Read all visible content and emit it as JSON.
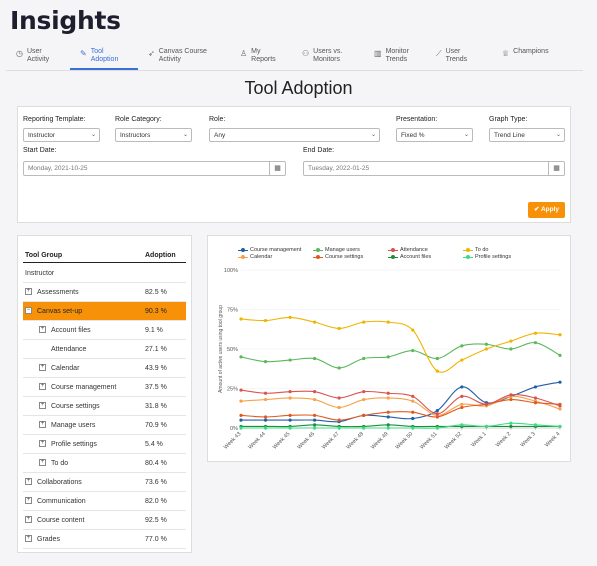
{
  "app": {
    "title": "Insights"
  },
  "tabs": [
    {
      "label": "User\nActivity",
      "icon": "clock-icon",
      "active": false
    },
    {
      "label": "Tool\nAdoption",
      "icon": "wrench-icon",
      "active": true
    },
    {
      "label": "Canvas Course\nActivity",
      "icon": "cursor-icon",
      "active": false
    },
    {
      "label": "My\nReports",
      "icon": "person-icon",
      "active": false
    },
    {
      "label": "Users vs.\nMonitors",
      "icon": "users-icon",
      "active": false
    },
    {
      "label": "Monitor\nTrends",
      "icon": "bar-chart-icon",
      "active": false
    },
    {
      "label": "User\nTrends",
      "icon": "line-chart-icon",
      "active": false
    },
    {
      "label": "Champions",
      "icon": "trophy-icon",
      "active": false
    }
  ],
  "page": {
    "title": "Tool Adoption"
  },
  "filters": {
    "reporting_template": {
      "label": "Reporting Template:",
      "value": "Instructor"
    },
    "role_category": {
      "label": "Role Category:",
      "value": "Instructors"
    },
    "role": {
      "label": "Role:",
      "value": "Any"
    },
    "presentation": {
      "label": "Presentation:",
      "value": "Fixed %"
    },
    "graph_type": {
      "label": "Graph Type:",
      "value": "Trend Line"
    },
    "start_date": {
      "label": "Start Date:",
      "value": "Monday, 2021-10-25"
    },
    "end_date": {
      "label": "End Date:",
      "value": "Tuesday, 2022-01-25"
    },
    "apply_label": "✔ Apply",
    "accent": "#f79208"
  },
  "table": {
    "headers": [
      "Tool Group",
      "Adoption"
    ],
    "rows": [
      {
        "name": "Instructor",
        "value": "",
        "level": 0,
        "expander": ""
      },
      {
        "name": "Assessments",
        "value": "82.5 %",
        "level": 0,
        "expander": "+"
      },
      {
        "name": "Canvas set-up",
        "value": "90.3 %",
        "level": 0,
        "expander": "-",
        "selected": true
      },
      {
        "name": "Account files",
        "value": "9.1 %",
        "level": 1,
        "expander": "+"
      },
      {
        "name": "Attendance",
        "value": "27.1 %",
        "level": 1,
        "expander": ""
      },
      {
        "name": "Calendar",
        "value": "43.9 %",
        "level": 1,
        "expander": "+"
      },
      {
        "name": "Course management",
        "value": "37.5 %",
        "level": 1,
        "expander": "+"
      },
      {
        "name": "Course settings",
        "value": "31.8 %",
        "level": 1,
        "expander": "+"
      },
      {
        "name": "Manage users",
        "value": "70.9 %",
        "level": 1,
        "expander": "+"
      },
      {
        "name": "Profile settings",
        "value": "5.4 %",
        "level": 1,
        "expander": "+"
      },
      {
        "name": "To do",
        "value": "80.4 %",
        "level": 1,
        "expander": "+"
      },
      {
        "name": "Collaborations",
        "value": "73.6 %",
        "level": 0,
        "expander": "+"
      },
      {
        "name": "Communication",
        "value": "82.0 %",
        "level": 0,
        "expander": "+"
      },
      {
        "name": "Course content",
        "value": "92.5 %",
        "level": 0,
        "expander": "+"
      },
      {
        "name": "Grades",
        "value": "77.0 %",
        "level": 0,
        "expander": "+"
      }
    ]
  },
  "chart_data": {
    "type": "line",
    "ylabel": "Amount of active users using tool group",
    "ylim": [
      0,
      100
    ],
    "yticks": [
      "0%",
      "25%",
      "50%",
      "75%",
      "100%"
    ],
    "categories": [
      "Week 43",
      "Week 44",
      "Week 45",
      "Week 46",
      "Week 47",
      "Week 48",
      "Week 49",
      "Week 50",
      "Week 51",
      "Week 52",
      "Week 1",
      "Week 2",
      "Week 3",
      "Week 4"
    ],
    "legend_position": "top",
    "series": [
      {
        "name": "Course management",
        "color": "#1f5fa8",
        "values": [
          5,
          5,
          5,
          5,
          4,
          8,
          7,
          6,
          11,
          26,
          16,
          20,
          26,
          29
        ]
      },
      {
        "name": "Calendar",
        "color": "#f5a24a",
        "values": [
          17,
          18,
          19,
          18,
          13,
          18,
          19,
          17,
          8,
          15,
          14,
          20,
          17,
          12
        ]
      },
      {
        "name": "Manage users",
        "color": "#5cb85c",
        "values": [
          45,
          42,
          43,
          44,
          38,
          44,
          45,
          49,
          44,
          52,
          53,
          50,
          54,
          46
        ]
      },
      {
        "name": "Course settings",
        "color": "#e05a1e",
        "values": [
          8,
          7,
          8,
          8,
          5,
          8,
          10,
          10,
          7,
          13,
          15,
          18,
          16,
          15
        ]
      },
      {
        "name": "Attendance",
        "color": "#d9534f",
        "values": [
          24,
          22,
          23,
          23,
          19,
          23,
          22,
          20,
          9,
          20,
          15,
          21,
          19,
          14
        ]
      },
      {
        "name": "Account files",
        "color": "#1a8f3c",
        "values": [
          1,
          1,
          1,
          2,
          1,
          1,
          2,
          1,
          1,
          1,
          1,
          1,
          1,
          1
        ]
      },
      {
        "name": "To do",
        "color": "#f0b400",
        "values": [
          69,
          68,
          70,
          67,
          63,
          67,
          67,
          62,
          36,
          43,
          50,
          55,
          60,
          59
        ]
      },
      {
        "name": "Profile settings",
        "color": "#3ddc84",
        "values": [
          0,
          0,
          0,
          0,
          0,
          0,
          0,
          0,
          0,
          2,
          1,
          3,
          2,
          1
        ]
      }
    ]
  }
}
